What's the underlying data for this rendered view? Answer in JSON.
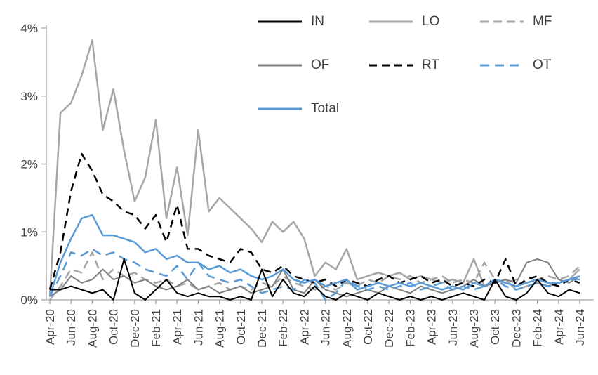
{
  "chart_data": {
    "type": "line",
    "x": [
      "Apr-20",
      "May-20",
      "Jun-20",
      "Jul-20",
      "Aug-20",
      "Sep-20",
      "Oct-20",
      "Nov-20",
      "Dec-20",
      "Jan-21",
      "Feb-21",
      "Mar-21",
      "Apr-21",
      "May-21",
      "Jun-21",
      "Jul-21",
      "Aug-21",
      "Sep-21",
      "Oct-21",
      "Nov-21",
      "Dec-21",
      "Jan-22",
      "Feb-22",
      "Mar-22",
      "Apr-22",
      "May-22",
      "Jun-22",
      "Jul-22",
      "Aug-22",
      "Sep-22",
      "Oct-22",
      "Nov-22",
      "Dec-22",
      "Jan-23",
      "Feb-23",
      "Mar-23",
      "Apr-23",
      "May-23",
      "Jun-23",
      "Jul-23",
      "Aug-23",
      "Sep-23",
      "Oct-23",
      "Nov-23",
      "Dec-23",
      "Jan-24",
      "Feb-24",
      "Mar-24",
      "Apr-24",
      "May-24",
      "Jun-24"
    ],
    "tick_step": 2,
    "ylim": [
      0,
      4
    ],
    "y_tick_labels": [
      "0%",
      "1%",
      "2%",
      "3%",
      "4%"
    ],
    "grid": false,
    "legend_position": "top-right",
    "series": [
      {
        "name": "IN",
        "color": "#000000",
        "dash": "",
        "width": 2,
        "values": [
          0.15,
          0.15,
          0.2,
          0.15,
          0.1,
          0.15,
          0.0,
          0.6,
          0.1,
          0.0,
          0.15,
          0.3,
          0.1,
          0.05,
          0.1,
          0.05,
          0.05,
          0.0,
          0.05,
          0.0,
          0.45,
          0.05,
          0.3,
          0.1,
          0.05,
          0.2,
          0.05,
          0.0,
          0.1,
          0.05,
          0.0,
          0.1,
          0.05,
          0.0,
          0.05,
          0.0,
          0.05,
          0.0,
          0.05,
          0.1,
          0.05,
          0.0,
          0.3,
          0.05,
          0.0,
          0.1,
          0.3,
          0.1,
          0.05,
          0.15,
          0.1
        ]
      },
      {
        "name": "LO",
        "color": "#a6a6a6",
        "dash": "",
        "width": 2.5,
        "values": [
          0.05,
          2.75,
          2.9,
          3.3,
          3.82,
          2.5,
          3.1,
          2.2,
          1.45,
          1.8,
          2.65,
          1.2,
          1.95,
          0.95,
          2.5,
          1.3,
          1.5,
          1.35,
          1.2,
          1.05,
          0.85,
          1.15,
          1.0,
          1.15,
          0.9,
          0.35,
          0.55,
          0.45,
          0.75,
          0.3,
          0.35,
          0.4,
          0.35,
          0.4,
          0.3,
          0.35,
          0.3,
          0.25,
          0.3,
          0.25,
          0.6,
          0.2,
          0.25,
          0.3,
          0.15,
          0.2,
          0.25,
          0.2,
          0.25,
          0.3,
          0.45
        ]
      },
      {
        "name": "MF",
        "color": "#a6a6a6",
        "dash": "12,7",
        "width": 2.5,
        "values": [
          0.0,
          0.2,
          0.45,
          0.4,
          0.7,
          0.3,
          0.45,
          0.35,
          0.4,
          0.3,
          0.25,
          0.3,
          0.2,
          0.25,
          0.15,
          0.2,
          0.25,
          0.15,
          0.2,
          0.15,
          0.25,
          0.2,
          0.35,
          0.25,
          0.2,
          0.15,
          0.2,
          0.15,
          0.25,
          0.2,
          0.3,
          0.25,
          0.35,
          0.3,
          0.35,
          0.25,
          0.3,
          0.35,
          0.25,
          0.3,
          0.25,
          0.55,
          0.3,
          0.25,
          0.3,
          0.25,
          0.3,
          0.35,
          0.3,
          0.35,
          0.5
        ]
      },
      {
        "name": "OF",
        "color": "#7f7f7f",
        "dash": "",
        "width": 2,
        "values": [
          0.05,
          0.15,
          0.35,
          0.25,
          0.3,
          0.45,
          0.3,
          0.35,
          0.25,
          0.3,
          0.2,
          0.15,
          0.2,
          0.3,
          0.15,
          0.2,
          0.1,
          0.15,
          0.2,
          0.1,
          0.15,
          0.2,
          0.45,
          0.15,
          0.1,
          0.3,
          0.15,
          0.1,
          0.05,
          0.1,
          0.15,
          0.1,
          0.2,
          0.15,
          0.1,
          0.2,
          0.15,
          0.1,
          0.15,
          0.2,
          0.3,
          0.2,
          0.25,
          0.3,
          0.25,
          0.55,
          0.6,
          0.55,
          0.3,
          0.25,
          0.35
        ]
      },
      {
        "name": "RT",
        "color": "#000000",
        "dash": "11,7",
        "width": 2.5,
        "values": [
          0.15,
          0.7,
          1.6,
          2.15,
          1.9,
          1.55,
          1.45,
          1.3,
          1.25,
          1.05,
          1.25,
          0.85,
          1.4,
          0.75,
          0.75,
          0.65,
          0.6,
          0.55,
          0.75,
          0.7,
          0.45,
          0.4,
          0.5,
          0.35,
          0.3,
          0.25,
          0.3,
          0.2,
          0.3,
          0.25,
          0.2,
          0.3,
          0.35,
          0.25,
          0.3,
          0.35,
          0.25,
          0.3,
          0.2,
          0.25,
          0.2,
          0.3,
          0.25,
          0.6,
          0.2,
          0.3,
          0.35,
          0.25,
          0.2,
          0.3,
          0.25
        ]
      },
      {
        "name": "OT",
        "color": "#5b9bd5",
        "dash": "13,8",
        "width": 2.5,
        "values": [
          0.05,
          0.35,
          0.7,
          0.65,
          0.75,
          0.65,
          0.7,
          0.6,
          0.55,
          0.45,
          0.4,
          0.35,
          0.5,
          0.3,
          0.55,
          0.35,
          0.3,
          0.25,
          0.3,
          0.2,
          0.1,
          0.15,
          0.2,
          0.15,
          0.3,
          0.25,
          0.0,
          0.1,
          0.3,
          0.2,
          0.15,
          0.2,
          0.15,
          0.2,
          0.25,
          0.15,
          0.2,
          0.25,
          0.15,
          0.2,
          0.15,
          0.2,
          0.3,
          0.2,
          0.15,
          0.2,
          0.25,
          0.2,
          0.25,
          0.3,
          0.35
        ]
      },
      {
        "name": "Total",
        "color": "#5b9bd5",
        "dash": "",
        "width": 2.5,
        "values": [
          0.05,
          0.55,
          0.9,
          1.2,
          1.25,
          0.95,
          0.95,
          0.9,
          0.85,
          0.7,
          0.75,
          0.6,
          0.65,
          0.55,
          0.55,
          0.45,
          0.5,
          0.4,
          0.45,
          0.35,
          0.3,
          0.35,
          0.45,
          0.3,
          0.25,
          0.3,
          0.2,
          0.25,
          0.3,
          0.15,
          0.2,
          0.25,
          0.2,
          0.25,
          0.2,
          0.25,
          0.2,
          0.15,
          0.2,
          0.15,
          0.25,
          0.2,
          0.3,
          0.25,
          0.2,
          0.25,
          0.3,
          0.25,
          0.25,
          0.3,
          0.3
        ]
      }
    ]
  },
  "axis": {
    "label_color": "#404040",
    "line_color": "#a6a6a6"
  }
}
